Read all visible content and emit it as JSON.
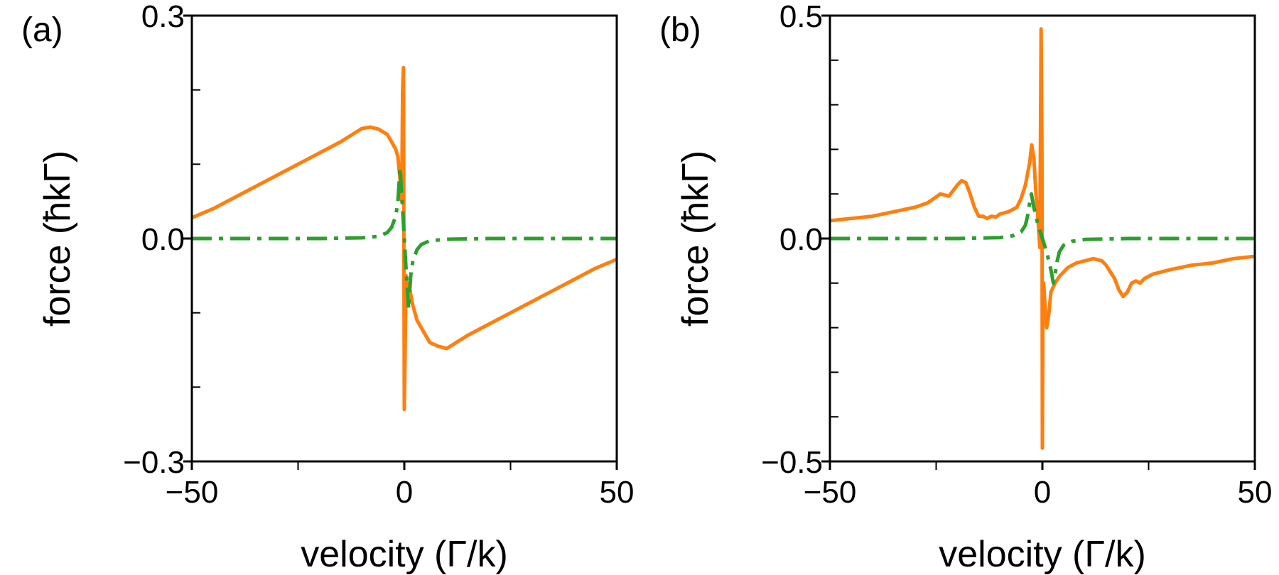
{
  "chart_data": [
    {
      "type": "line",
      "panel_label": "(a)",
      "xlabel": "velocity (Γ/k)",
      "ylabel": "force (ħkΓ)",
      "xlim": [
        -50,
        50
      ],
      "ylim": [
        -0.3,
        0.3
      ],
      "xticks": [
        -50,
        0,
        50
      ],
      "xtick_labels": [
        "−50",
        "0",
        "50"
      ],
      "xminor": [
        -25,
        25
      ],
      "yticks": [
        -0.3,
        0.0,
        0.3
      ],
      "ytick_labels": [
        "−0.3",
        "0.0",
        "0.3"
      ],
      "yminor": [
        -0.2,
        -0.1,
        0.1,
        0.2
      ],
      "grid": false,
      "series": [
        {
          "name": "orange",
          "color": "#ff7f0e",
          "style": "solid",
          "x": [
            -50,
            -45,
            -40,
            -35,
            -30,
            -25,
            -20,
            -15,
            -10,
            -8,
            -6,
            -4,
            -3,
            -2,
            -1.5,
            -1,
            -0.6,
            -0.4,
            -0.2,
            0,
            0.2,
            0.4,
            0.6,
            1,
            1.5,
            2,
            3,
            4,
            6,
            8,
            10,
            15,
            20,
            25,
            30,
            35,
            40,
            45,
            50
          ],
          "values": [
            0.028,
            0.04,
            0.055,
            0.07,
            0.085,
            0.1,
            0.115,
            0.13,
            0.148,
            0.15,
            0.147,
            0.14,
            0.13,
            0.12,
            0.11,
            0.08,
            0.05,
            0.2,
            0.23,
            -0.23,
            -0.15,
            -0.05,
            -0.08,
            -0.06,
            -0.075,
            -0.09,
            -0.11,
            -0.12,
            -0.14,
            -0.145,
            -0.148,
            -0.13,
            -0.115,
            -0.1,
            -0.085,
            -0.07,
            -0.055,
            -0.04,
            -0.028
          ]
        },
        {
          "name": "green",
          "color": "#2ca02c",
          "style": "dash-dot",
          "x": [
            -50,
            -20,
            -10,
            -6,
            -4,
            -3,
            -2,
            -1.5,
            -1,
            -0.5,
            0,
            0.5,
            1,
            1.5,
            2,
            3,
            4,
            6,
            10,
            20,
            50
          ],
          "values": [
            0.0,
            0.0,
            0.001,
            0.003,
            0.008,
            0.015,
            0.03,
            0.05,
            0.095,
            0.05,
            0.0,
            -0.05,
            -0.095,
            -0.05,
            -0.03,
            -0.015,
            -0.008,
            -0.003,
            -0.001,
            0.0,
            0.0
          ]
        }
      ]
    },
    {
      "type": "line",
      "panel_label": "(b)",
      "xlabel": "velocity (Γ/k)",
      "ylabel": "force (ħkΓ)",
      "xlim": [
        -50,
        50
      ],
      "ylim": [
        -0.5,
        0.5
      ],
      "xticks": [
        -50,
        0,
        50
      ],
      "xtick_labels": [
        "−50",
        "0",
        "50"
      ],
      "xminor": [
        -25,
        25
      ],
      "yticks": [
        -0.5,
        0.0,
        0.5
      ],
      "ytick_labels": [
        "−0.5",
        "0.0",
        "0.5"
      ],
      "yminor": [
        -0.4,
        -0.3,
        -0.2,
        -0.1,
        0.1,
        0.2,
        0.3,
        0.4
      ],
      "grid": false,
      "series": [
        {
          "name": "orange",
          "color": "#ff7f0e",
          "style": "solid",
          "x": [
            -50,
            -45,
            -40,
            -35,
            -30,
            -27,
            -24,
            -22,
            -20,
            -19,
            -18,
            -17,
            -16,
            -15,
            -14,
            -13,
            -12,
            -11,
            -10,
            -8,
            -6,
            -5,
            -4,
            -3,
            -2.5,
            -2,
            -1.5,
            -1,
            -0.6,
            -0.3,
            -0.1,
            0,
            0.1,
            0.3,
            0.6,
            1,
            1.5,
            2,
            3,
            4,
            6,
            8,
            10,
            12,
            14,
            15,
            16,
            17,
            18,
            19,
            20,
            21,
            22,
            23,
            24,
            26,
            30,
            35,
            40,
            45,
            50
          ],
          "values": [
            0.04,
            0.045,
            0.05,
            0.06,
            0.07,
            0.08,
            0.1,
            0.095,
            0.12,
            0.13,
            0.125,
            0.1,
            0.07,
            0.05,
            0.05,
            0.045,
            0.05,
            0.048,
            0.055,
            0.06,
            0.07,
            0.09,
            0.12,
            0.17,
            0.21,
            0.18,
            0.1,
            0.04,
            -0.02,
            0.47,
            0.2,
            -0.47,
            -0.2,
            -0.1,
            -0.15,
            -0.2,
            -0.17,
            -0.12,
            -0.1,
            -0.085,
            -0.065,
            -0.055,
            -0.05,
            -0.045,
            -0.05,
            -0.06,
            -0.075,
            -0.09,
            -0.115,
            -0.13,
            -0.12,
            -0.1,
            -0.095,
            -0.1,
            -0.09,
            -0.08,
            -0.07,
            -0.06,
            -0.055,
            -0.045,
            -0.04
          ]
        },
        {
          "name": "green",
          "color": "#2ca02c",
          "style": "dash-dot",
          "x": [
            -50,
            -20,
            -10,
            -7,
            -5,
            -4,
            -3.5,
            -3,
            -2.6,
            -2,
            -1,
            0,
            1,
            2,
            2.6,
            3,
            3.5,
            4,
            5,
            7,
            10,
            20,
            50
          ],
          "values": [
            0.0,
            0.0,
            0.002,
            0.006,
            0.015,
            0.03,
            0.05,
            0.08,
            0.1,
            0.07,
            0.03,
            0.0,
            -0.03,
            -0.07,
            -0.1,
            -0.08,
            -0.05,
            -0.03,
            -0.015,
            -0.006,
            -0.002,
            0.0,
            0.0
          ]
        }
      ]
    }
  ]
}
